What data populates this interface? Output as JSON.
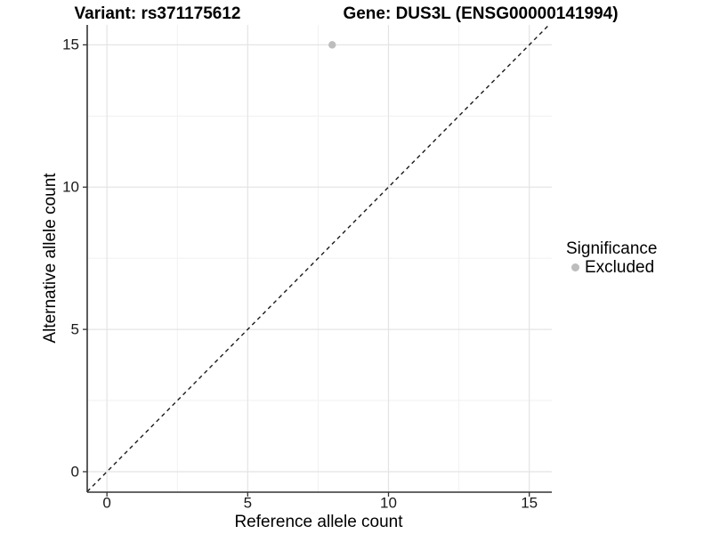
{
  "chart_data": {
    "type": "scatter",
    "titles": {
      "left": "Variant: rs371175612",
      "right": "Gene: DUS3L (ENSG00000141994)"
    },
    "xlabel": "Reference allele count",
    "ylabel": "Alternative allele count",
    "x_ticks": {
      "values": [
        0,
        5,
        10,
        15
      ],
      "labels": [
        "0",
        "5",
        "10",
        "15"
      ]
    },
    "y_ticks": {
      "values": [
        0,
        5,
        10,
        15
      ],
      "labels": [
        "0",
        "5",
        "10",
        "15"
      ]
    },
    "minor_ticks": [
      2.5,
      7.5,
      12.5
    ],
    "xlim": [
      -0.7,
      15.8
    ],
    "ylim": [
      -0.72,
      15.7
    ],
    "grid": {
      "major": true,
      "minor": true
    },
    "points": [
      {
        "x": 8,
        "y": 15,
        "series": "Excluded"
      }
    ],
    "reference_line": {
      "kind": "identity",
      "equation": "y = x",
      "style": "dashed"
    },
    "legend": {
      "title": "Significance",
      "position": "right",
      "entries": [
        {
          "label": "Excluded",
          "color": "#bdbdbd",
          "marker": "circle"
        }
      ]
    },
    "colors": {
      "point": "#bdbdbd",
      "grid_major": "#e4e4e4",
      "grid_minor": "#f1f1f1",
      "axis": "#333333",
      "reference_line": "#1a1a1a",
      "tick_text": "#1a1a1a",
      "title_text": "#000000"
    }
  }
}
